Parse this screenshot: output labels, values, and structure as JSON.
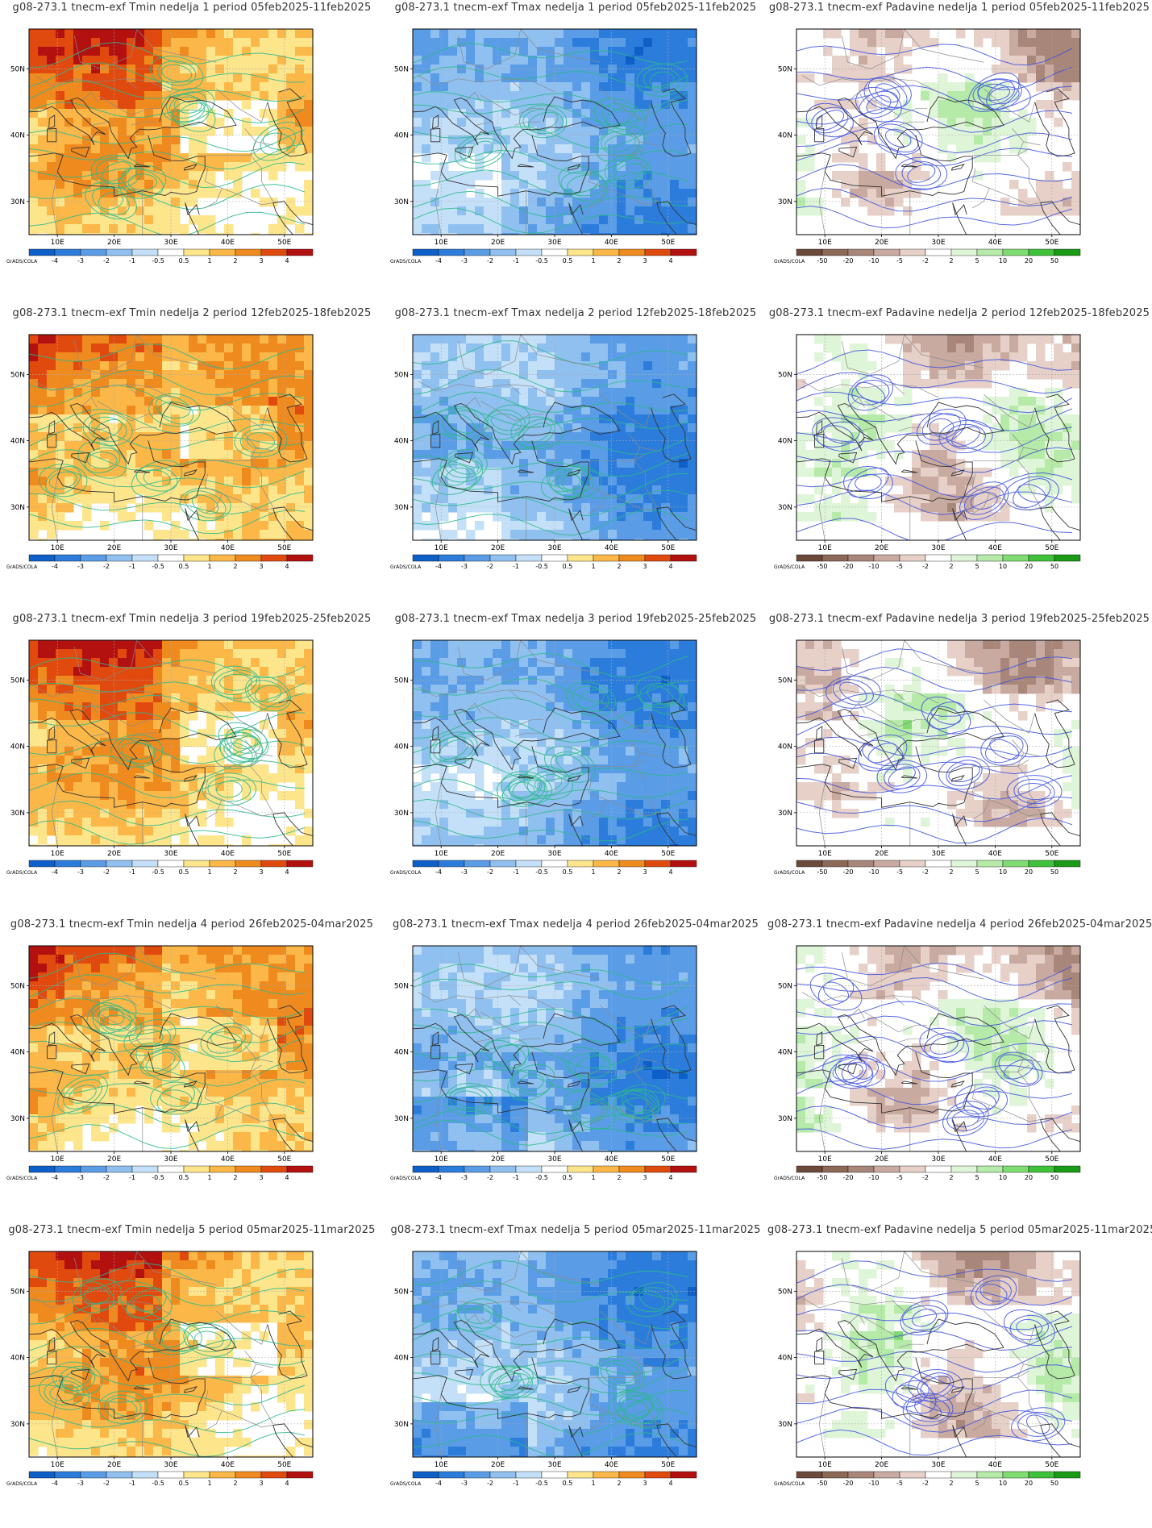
{
  "rows": [
    {
      "week": "1",
      "period": "05feb2025-11feb2025"
    },
    {
      "week": "2",
      "period": "12feb2025-18feb2025"
    },
    {
      "week": "3",
      "period": "19feb2025-25feb2025"
    },
    {
      "week": "4",
      "period": "26feb2025-04mar2025"
    },
    {
      "week": "5",
      "period": "05mar2025-11mar2025"
    }
  ],
  "panels": [
    {
      "title": "g08-273.1 tnecm-exf Tmin nedelja 1 period 05feb2025-11feb2025",
      "variable": "Tmin",
      "week": 1,
      "palette": "warm"
    },
    {
      "title": "g08-273.1 tnecm-exf Tmax nedelja 1 period 05feb2025-11feb2025",
      "variable": "Tmax",
      "week": 1,
      "palette": "cold"
    },
    {
      "title": "g08-273.1 tnecm-exf Padavine nedelja 1 period 05feb2025-11feb2025",
      "variable": "Padavine",
      "week": 1,
      "palette": "precip"
    },
    {
      "title": "g08-273.1 tnecm-exf Tmin nedelja 2 period 12feb2025-18feb2025",
      "variable": "Tmin",
      "week": 2,
      "palette": "warm"
    },
    {
      "title": "g08-273.1 tnecm-exf Tmax nedelja 2 period 12feb2025-18feb2025",
      "variable": "Tmax",
      "week": 2,
      "palette": "cold"
    },
    {
      "title": "g08-273.1 tnecm-exf Padavine nedelja 2 period 12feb2025-18feb2025",
      "variable": "Padavine",
      "week": 2,
      "palette": "precip"
    },
    {
      "title": "g08-273.1 tnecm-exf Tmin nedelja 3 period 19feb2025-25feb2025",
      "variable": "Tmin",
      "week": 3,
      "palette": "warm"
    },
    {
      "title": "g08-273.1 tnecm-exf Tmax nedelja 3 period 19feb2025-25feb2025",
      "variable": "Tmax",
      "week": 3,
      "palette": "cold"
    },
    {
      "title": "g08-273.1 tnecm-exf Padavine nedelja 3 period 19feb2025-25feb2025",
      "variable": "Padavine",
      "week": 3,
      "palette": "precip"
    },
    {
      "title": "g08-273.1 tnecm-exf Tmin nedelja 4 period 26feb2025-04mar2025",
      "variable": "Tmin",
      "week": 4,
      "palette": "warm"
    },
    {
      "title": "g08-273.1 tnecm-exf Tmax nedelja 4 period 26feb2025-04mar2025",
      "variable": "Tmax",
      "week": 4,
      "palette": "cold"
    },
    {
      "title": "g08-273.1 tnecm-exf Padavine nedelja 4 period 26feb2025-04mar2025",
      "variable": "Padavine",
      "week": 4,
      "palette": "precip"
    },
    {
      "title": "g08-273.1 tnecm-exf Tmin nedelja 5 period 05mar2025-11mar2025",
      "variable": "Tmin",
      "week": 5,
      "palette": "warm"
    },
    {
      "title": "g08-273.1 tnecm-exf Tmax nedelja 5 period 05mar2025-11mar2025",
      "variable": "Tmax",
      "week": 5,
      "palette": "cold"
    },
    {
      "title": "g08-273.1 tnecm-exf Padavine nedelja 5 period 05mar2025-11mar2025",
      "variable": "Padavine",
      "week": 5,
      "palette": "precip"
    }
  ],
  "axes": {
    "lon_ticks": [
      "10E",
      "20E",
      "30E",
      "40E",
      "50E"
    ],
    "lat_ticks": [
      "50N",
      "40N",
      "30N"
    ],
    "lon_range": [
      5,
      55
    ],
    "lat_range": [
      25,
      56
    ]
  },
  "colorbars": {
    "temperature": {
      "labels": [
        "-4",
        "-3",
        "-2",
        "-1",
        "-0.5",
        "0.5",
        "1",
        "2",
        "3",
        "4"
      ],
      "colors": [
        "#0f5fc9",
        "#2c7ddb",
        "#5a9de6",
        "#8fc0f0",
        "#c4e0f8",
        "#ffffff",
        "#fde58c",
        "#fbb848",
        "#ef8a1f",
        "#e14a0f",
        "#b31010"
      ]
    },
    "precipitation": {
      "labels": [
        "-50",
        "-20",
        "-10",
        "-5",
        "-2",
        "2",
        "5",
        "10",
        "20",
        "50"
      ],
      "colors": [
        "#6b4a3c",
        "#8c6857",
        "#a88679",
        "#c9aaa0",
        "#e6d0c8",
        "#ffffff",
        "#dff5d8",
        "#b5eaa8",
        "#7fdc72",
        "#3fc23a",
        "#1a9a16"
      ]
    },
    "source_label": "GrADS/COLA"
  },
  "palettes": {
    "warm": [
      "#ffffff",
      "#fde58c",
      "#fbb848",
      "#ef8a1f",
      "#e14a0f",
      "#b31010"
    ],
    "cold": [
      "#ffffff",
      "#c4e0f8",
      "#8fc0f0",
      "#5a9de6",
      "#2c7ddb",
      "#0f5fc9"
    ],
    "precip_dry": [
      "#ffffff",
      "#e6d0c8",
      "#c9aaa0",
      "#a88679"
    ],
    "precip_wet": [
      "#dff5d8",
      "#b5eaa8",
      "#7fdc72"
    ],
    "contour_green": "#2bb98a",
    "contour_blue": "#3b4fe0"
  }
}
